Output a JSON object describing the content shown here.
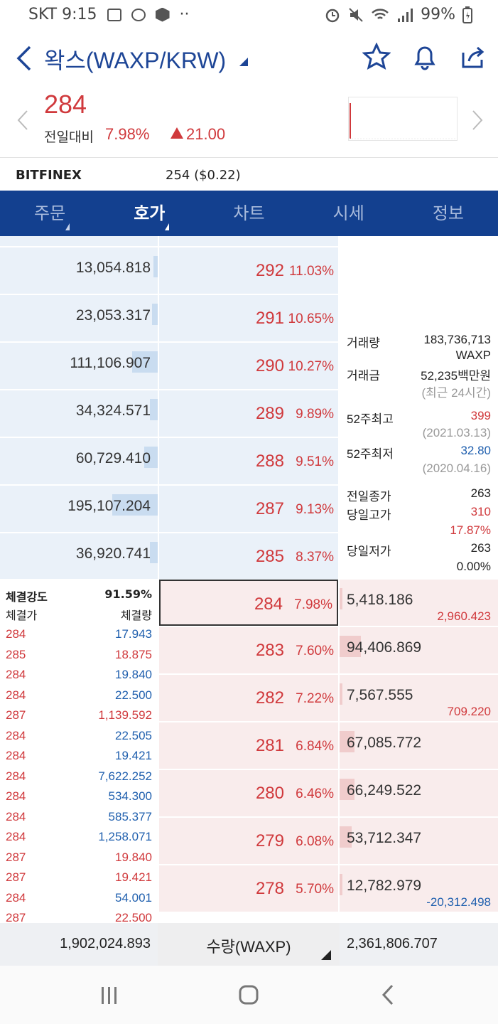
{
  "status_bar": {
    "carrier_time": "SKT 9:15",
    "dots": "··",
    "battery": "99%"
  },
  "header": {
    "title": "왁스(WAXP/KRW)"
  },
  "price_block": {
    "price": "284",
    "change_label": "전일대비",
    "change_percent": "7.98%",
    "change_amount": "21.00"
  },
  "exchange": {
    "name": "BITFINEX",
    "value": "254 ($0.22)"
  },
  "tabs": [
    {
      "label": "주문"
    },
    {
      "label": "호가"
    },
    {
      "label": "차트"
    },
    {
      "label": "시세"
    },
    {
      "label": "정보"
    }
  ],
  "asks": [
    {
      "qty": "13,054.818",
      "price": "292",
      "pct": "11.03%",
      "level": 0.03
    },
    {
      "qty": "23,053.317",
      "price": "291",
      "pct": "10.65%",
      "level": 0.04
    },
    {
      "qty": "111,106.907",
      "price": "290",
      "pct": "10.27%",
      "level": 0.17
    },
    {
      "qty": "34,324.571",
      "price": "289",
      "pct": "9.89%",
      "level": 0.05
    },
    {
      "qty": "60,729.410",
      "price": "288",
      "pct": "9.51%",
      "level": 0.09
    },
    {
      "qty": "195,107.204",
      "price": "287",
      "pct": "9.13%",
      "level": 0.3
    },
    {
      "qty": "36,920.741",
      "price": "285",
      "pct": "8.37%",
      "level": 0.05
    }
  ],
  "bids": [
    {
      "price": "284",
      "pct": "7.98%",
      "qty": "5,418.186",
      "sub": "2,960.423",
      "sub_color": "#d0393c",
      "level": 0.0
    },
    {
      "price": "283",
      "pct": "7.60%",
      "qty": "94,406.869",
      "sub": "",
      "sub_color": "#d0393c",
      "level": 0.14
    },
    {
      "price": "282",
      "pct": "7.22%",
      "qty": "7,567.555",
      "sub": "709.220",
      "sub_color": "#d0393c",
      "level": 0.01
    },
    {
      "price": "281",
      "pct": "6.84%",
      "qty": "67,085.772",
      "sub": "",
      "sub_color": "#d0393c",
      "level": 0.1
    },
    {
      "price": "280",
      "pct": "6.46%",
      "qty": "66,249.522",
      "sub": "",
      "sub_color": "#d0393c",
      "level": 0.1
    },
    {
      "price": "279",
      "pct": "6.08%",
      "qty": "53,712.347",
      "sub": "",
      "sub_color": "#d0393c",
      "level": 0.08
    },
    {
      "price": "278",
      "pct": "5.70%",
      "qty": "12,782.979",
      "sub": "-20,312.498",
      "sub_color": "#1f5fae",
      "level": 0.01
    }
  ],
  "stats": {
    "volume_label": "거래량",
    "volume_value": "183,736,713",
    "volume_unit": "WAXP",
    "amount_label": "거래금",
    "amount_value": "52,235백만원",
    "amount_note": "(최근 24시간)",
    "high52_label": "52주최고",
    "high52_value": "399",
    "high52_date": "(2021.03.13)",
    "low52_label": "52주최저",
    "low52_value": "32.80",
    "low52_date": "(2020.04.16)",
    "prev_close_label": "전일종가",
    "prev_close_value": "263",
    "day_high_label": "당일고가",
    "day_high_value": "310",
    "day_high_pct": "17.87%",
    "day_low_label": "당일저가",
    "day_low_value": "263",
    "day_low_pct": "0.00%"
  },
  "trades": {
    "strength_label": "체결강도",
    "strength_value": "91.59%",
    "price_header": "체결가",
    "qty_header": "체결량",
    "rows": [
      {
        "price": "284",
        "qty": "17.943",
        "price_color": "#d0393c",
        "qty_color": "#1f5fae"
      },
      {
        "price": "285",
        "qty": "18.875",
        "price_color": "#d0393c",
        "qty_color": "#d0393c"
      },
      {
        "price": "284",
        "qty": "19.840",
        "price_color": "#d0393c",
        "qty_color": "#1f5fae"
      },
      {
        "price": "284",
        "qty": "22.500",
        "price_color": "#d0393c",
        "qty_color": "#1f5fae"
      },
      {
        "price": "287",
        "qty": "1,139.592",
        "price_color": "#d0393c",
        "qty_color": "#d0393c"
      },
      {
        "price": "284",
        "qty": "22.505",
        "price_color": "#d0393c",
        "qty_color": "#1f5fae"
      },
      {
        "price": "284",
        "qty": "19.421",
        "price_color": "#d0393c",
        "qty_color": "#1f5fae"
      },
      {
        "price": "284",
        "qty": "7,622.252",
        "price_color": "#d0393c",
        "qty_color": "#1f5fae"
      },
      {
        "price": "284",
        "qty": "534.300",
        "price_color": "#d0393c",
        "qty_color": "#1f5fae"
      },
      {
        "price": "284",
        "qty": "585.377",
        "price_color": "#d0393c",
        "qty_color": "#1f5fae"
      },
      {
        "price": "284",
        "qty": "1,258.071",
        "price_color": "#d0393c",
        "qty_color": "#1f5fae"
      },
      {
        "price": "287",
        "qty": "19.840",
        "price_color": "#d0393c",
        "qty_color": "#d0393c"
      },
      {
        "price": "287",
        "qty": "19.421",
        "price_color": "#d0393c",
        "qty_color": "#d0393c"
      },
      {
        "price": "284",
        "qty": "54.001",
        "price_color": "#d0393c",
        "qty_color": "#1f5fae"
      },
      {
        "price": "287",
        "qty": "22.500",
        "price_color": "#d0393c",
        "qty_color": "#d0393c"
      }
    ]
  },
  "totals": {
    "ask_total": "1,902,024.893",
    "unit_selector": "수량(WAXP)",
    "bid_total": "2,361,806.707"
  },
  "colors": {
    "up": "#d0393c",
    "down": "#1f5fae",
    "brand": "#13408f"
  },
  "icons": [
    "back-arrow-icon",
    "star-icon",
    "bell-icon",
    "share-icon",
    "recents-icon",
    "home-icon",
    "back-nav-icon"
  ]
}
